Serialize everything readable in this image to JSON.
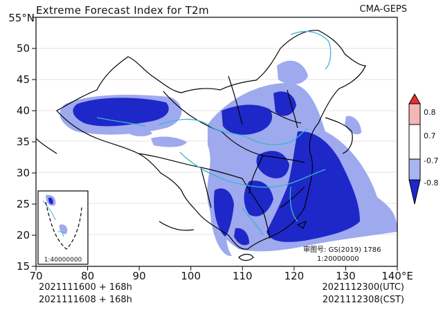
{
  "header": {
    "title": "Extreme Forecast Index for T2m",
    "source": "CMA-GEPS"
  },
  "map": {
    "lon_ticks": [
      "70",
      "80",
      "90",
      "100",
      "110",
      "120",
      "130",
      "140°E"
    ],
    "lat_ticks": [
      "15",
      "20",
      "25",
      "30",
      "35",
      "40",
      "45",
      "50",
      "55°N"
    ],
    "review_number": "审图号: GS(2019) 1786",
    "scale": "1:20000000",
    "inset_scale": "1:40000000"
  },
  "colorbar": {
    "labels": [
      "0.8",
      "0.7",
      "-0.7",
      "-0.8"
    ],
    "colors": [
      "#e8302e",
      "#f6b6b6",
      "#ffffff",
      "#aab4f0",
      "#1e28c8"
    ]
  },
  "footer": {
    "init_utc": "2021111600 + 168h",
    "init_cst": "2021111608 + 168h",
    "valid_utc": "2021112300(UTC)",
    "valid_cst": "2021112308(CST)"
  }
}
